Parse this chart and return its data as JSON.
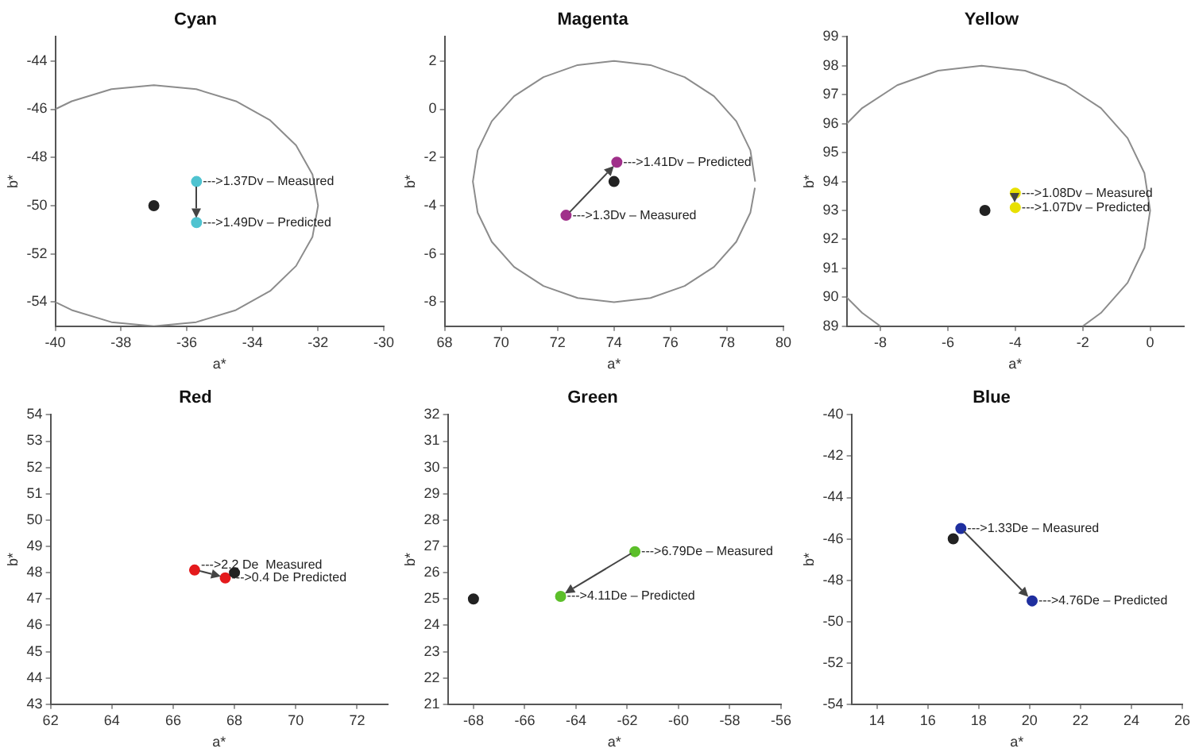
{
  "chart_data": [
    {
      "type": "scatter",
      "title": "Cyan",
      "xlabel": "a*",
      "ylabel": "b*",
      "marker": "circle",
      "xlim": [
        -40,
        -30
      ],
      "ylim": [
        -55,
        -43
      ],
      "xticks": [
        -40,
        -38,
        -36,
        -34,
        -32,
        -30
      ],
      "yticks": [
        -54,
        -52,
        -50,
        -48,
        -46,
        -44
      ],
      "series": [
        {
          "type": "line",
          "color": "#8c8c8c",
          "x": [
            -40,
            -39.5,
            -38.29,
            -37,
            -35.71,
            -34.5,
            -33.46,
            -32.67,
            -32.17,
            -32,
            -32.17,
            -32.67,
            -33.46,
            -34.5,
            -35.71,
            -37,
            -38.29,
            -39.5,
            -40
          ],
          "values": [
            -46,
            -45.67,
            -45.17,
            -45,
            -45.17,
            -45.67,
            -46.46,
            -47.5,
            -48.71,
            -50,
            -51.29,
            -52.5,
            -53.54,
            -54.33,
            -54.83,
            -55,
            -54.83,
            -54.33,
            -54
          ],
          "marker": "none"
        },
        {
          "color": "#222222",
          "x": [
            -37
          ],
          "values": [
            -50
          ]
        },
        {
          "color": "#4fc3d0",
          "x": [
            -35.7,
            -35.7
          ],
          "values": [
            -49,
            -50.7
          ]
        }
      ],
      "annotations": [
        {
          "text": "--->1.37Dv – Measured",
          "x": -35.7,
          "y": -49
        },
        {
          "text": "--->1.49Dv – Predicted",
          "x": -35.7,
          "y": -50.7
        }
      ]
    },
    {
      "type": "scatter",
      "title": "Magenta",
      "xlabel": "a*",
      "ylabel": "b*",
      "marker": "circle",
      "xlim": [
        68,
        80
      ],
      "ylim": [
        -9,
        3
      ],
      "xticks": [
        68,
        70,
        72,
        74,
        76,
        78,
        80
      ],
      "yticks": [
        -8,
        -6,
        -4,
        -2,
        0,
        2
      ],
      "series": [
        {
          "type": "line",
          "color": "#8c8c8c",
          "x": [
            79,
            78.83,
            78.33,
            77.54,
            76.5,
            75.29,
            74,
            72.71,
            71.5,
            70.46,
            69.67,
            69.17,
            69,
            69.17,
            69.67,
            70.46,
            71.5,
            72.71,
            74,
            75.29,
            76.5,
            77.54,
            78.33,
            78.83,
            78.99
          ],
          "values": [
            -3,
            -1.71,
            -0.5,
            0.54,
            1.33,
            1.83,
            2,
            1.83,
            1.33,
            0.54,
            -0.5,
            -1.71,
            -3,
            -4.29,
            -5.5,
            -6.54,
            -7.33,
            -7.83,
            -8,
            -7.83,
            -7.33,
            -6.54,
            -5.5,
            -4.29,
            -3.26
          ],
          "marker": "none"
        },
        {
          "color": "#222222",
          "x": [
            74
          ],
          "values": [
            -3
          ]
        },
        {
          "color": "#a0308a",
          "x": [
            72.3,
            74.1
          ],
          "values": [
            -4.4,
            -2.2
          ]
        }
      ],
      "annotations": [
        {
          "text": "--->1.3Dv – Measured",
          "x": 72.3,
          "y": -4.4
        },
        {
          "text": "--->1.41Dv – Predicted",
          "x": 74.1,
          "y": -2.2
        }
      ]
    },
    {
      "type": "scatter",
      "title": "Yellow",
      "xlabel": "a*",
      "ylabel": "b*",
      "marker": "circle",
      "xlim": [
        -9,
        1
      ],
      "ylim": [
        89,
        99
      ],
      "xticks": [
        -8,
        -6,
        -4,
        -2,
        0
      ],
      "yticks": [
        89,
        90,
        91,
        92,
        93,
        94,
        95,
        96,
        97,
        98,
        99
      ],
      "series": [
        {
          "type": "line",
          "color": "#8c8c8c",
          "x": [
            -9,
            -8.54,
            -7.5,
            -6.29,
            -5,
            -3.71,
            -2.5,
            -1.46,
            -0.67,
            -0.17,
            0,
            -0.17,
            -0.67,
            -1.46,
            -2,
            -5,
            -8,
            -8.54,
            -9
          ],
          "values": [
            96,
            96.54,
            97.33,
            97.83,
            98,
            97.83,
            97.33,
            96.54,
            95.5,
            94.29,
            93,
            91.71,
            90.5,
            89.46,
            89,
            null,
            89,
            89.46,
            90
          ],
          "marker": "none"
        },
        {
          "color": "#222222",
          "x": [
            -4.9
          ],
          "values": [
            93
          ]
        },
        {
          "color": "#e8e000",
          "x": [
            -4,
            -4
          ],
          "values": [
            93.6,
            93.1
          ]
        }
      ],
      "annotations": [
        {
          "text": "--->1.08Dv – Measured",
          "x": -4,
          "y": 93.6
        },
        {
          "text": "--->1.07Dv – Predicted",
          "x": -4,
          "y": 93.1
        }
      ]
    },
    {
      "type": "scatter",
      "title": "Red",
      "xlabel": "a*",
      "ylabel": "b*",
      "marker": "circle",
      "xlim": [
        62,
        73
      ],
      "ylim": [
        43,
        54
      ],
      "xticks": [
        62,
        64,
        66,
        68,
        70,
        72
      ],
      "yticks": [
        43,
        44,
        45,
        46,
        47,
        48,
        49,
        50,
        51,
        52,
        53,
        54
      ],
      "series": [
        {
          "color": "#222222",
          "x": [
            68
          ],
          "values": [
            48
          ]
        },
        {
          "color": "#e41a1c",
          "x": [
            66.7,
            67.7
          ],
          "values": [
            48.1,
            47.8
          ]
        }
      ],
      "annotations": [
        {
          "text": "--->2.2 De  Measured",
          "x": 66.7,
          "y": 48.3
        },
        {
          "text": "--->0.4 De Predicted",
          "x": 67.7,
          "y": 47.8
        }
      ]
    },
    {
      "type": "scatter",
      "title": "Green",
      "xlabel": "a*",
      "ylabel": "b*",
      "marker": "circle",
      "xlim": [
        -69,
        -56
      ],
      "ylim": [
        21,
        32
      ],
      "xticks": [
        -68,
        -66,
        -64,
        -62,
        -60,
        -58,
        -56
      ],
      "yticks": [
        21,
        22,
        23,
        24,
        25,
        26,
        27,
        28,
        29,
        30,
        31,
        32
      ],
      "series": [
        {
          "color": "#222222",
          "x": [
            -68
          ],
          "values": [
            25
          ]
        },
        {
          "color": "#5cbf2a",
          "x": [
            -61.7,
            -64.6
          ],
          "values": [
            26.8,
            25.1
          ]
        }
      ],
      "annotations": [
        {
          "text": "--->6.79De – Measured",
          "x": -61.7,
          "y": 26.8
        },
        {
          "text": "--->4.11De – Predicted",
          "x": -64.6,
          "y": 25.1
        }
      ]
    },
    {
      "type": "scatter",
      "title": "Blue",
      "xlabel": "a*",
      "ylabel": "b*",
      "marker": "circle",
      "xlim": [
        13,
        26
      ],
      "ylim": [
        -54,
        -40
      ],
      "xticks": [
        14,
        16,
        18,
        20,
        22,
        24,
        26
      ],
      "yticks": [
        -54,
        -52,
        -50,
        -48,
        -46,
        -44,
        -42,
        -40
      ],
      "series": [
        {
          "color": "#222222",
          "x": [
            17
          ],
          "values": [
            -46
          ]
        },
        {
          "color": "#1f2f9f",
          "x": [
            17.3,
            20.1
          ],
          "values": [
            -45.5,
            -49
          ]
        }
      ],
      "annotations": [
        {
          "text": "--->1.33De – Measured",
          "x": 17.3,
          "y": -45.5
        },
        {
          "text": "--->4.76De – Predicted",
          "x": 20.1,
          "y": -49
        }
      ]
    }
  ]
}
